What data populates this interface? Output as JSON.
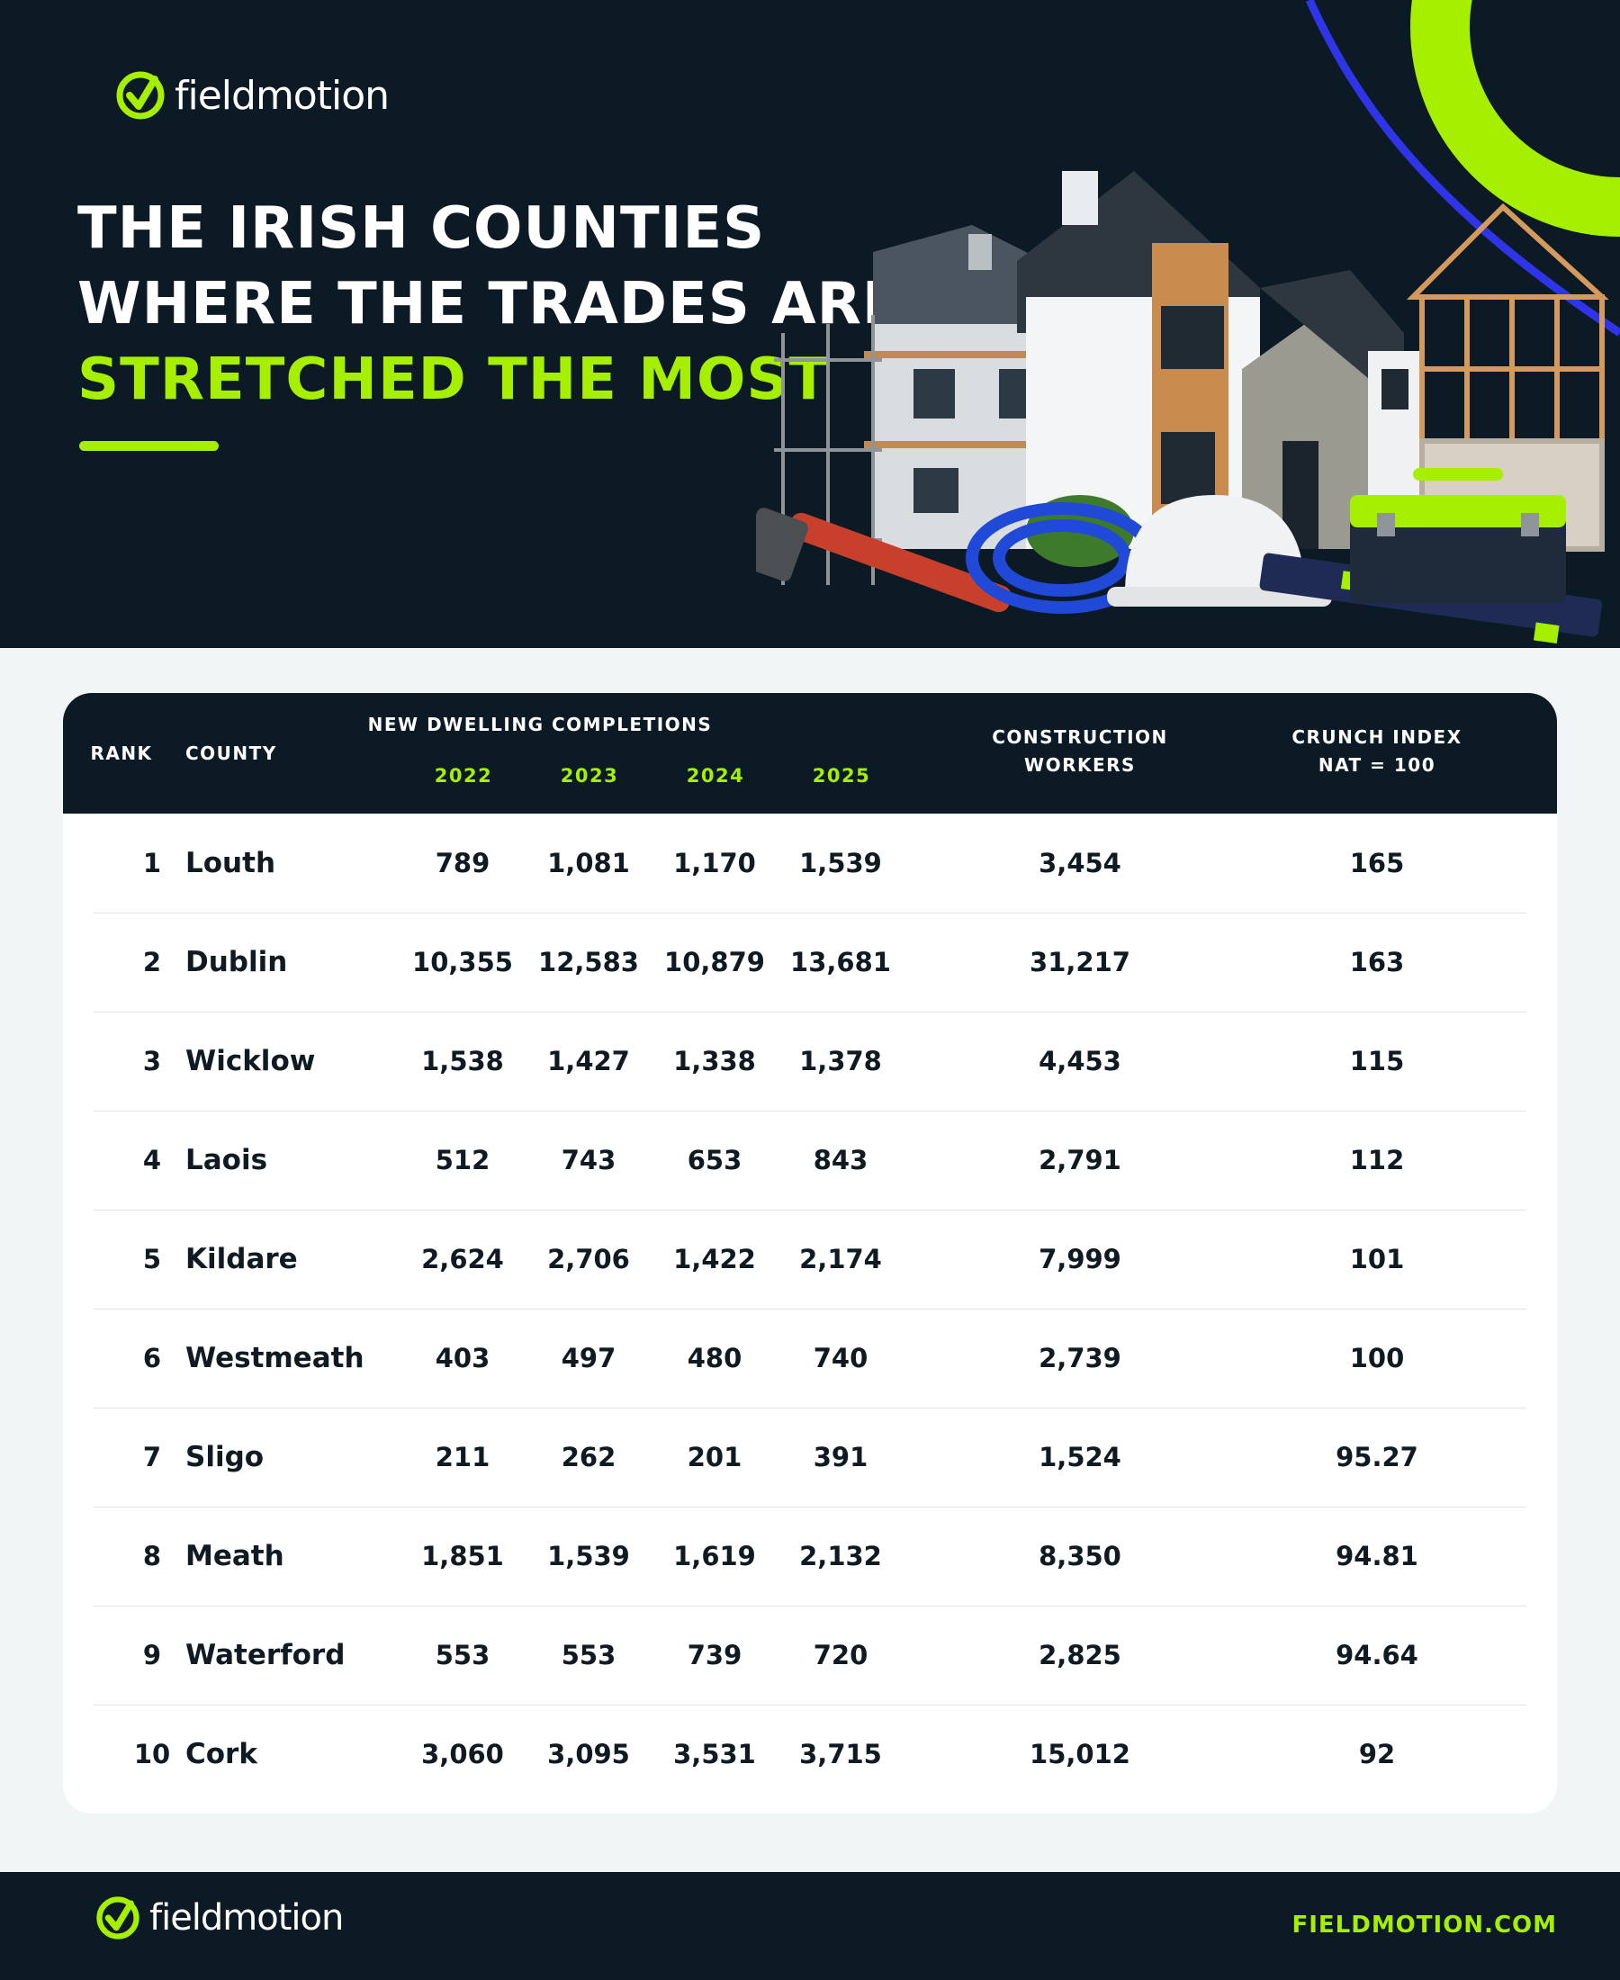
{
  "brand": {
    "name": "fieldmotion",
    "url": "FIELDMOTION.COM"
  },
  "hero": {
    "title_line1": "THE IRISH COUNTIES",
    "title_line2": "WHERE THE TRADES ARE",
    "title_highlight": "STRETCHED THE MOST"
  },
  "colors": {
    "accent": "#a6ef00",
    "dark": "#0b1a25",
    "blue": "#2f35e6"
  },
  "table": {
    "headers": {
      "rank": "RANK",
      "county": "COUNTY",
      "completions_group": "NEW DWELLING COMPLETIONS",
      "years": [
        "2022",
        "2023",
        "2024",
        "2025"
      ],
      "workers_line1": "CONSTRUCTION",
      "workers_line2": "WORKERS",
      "index_line1": "CRUNCH INDEX",
      "index_line2": "NAT = 100"
    },
    "rows": [
      {
        "rank": "1",
        "county": "Louth",
        "y2022": "789",
        "y2023": "1,081",
        "y2024": "1,170",
        "y2025": "1,539",
        "workers": "3,454",
        "index": "165"
      },
      {
        "rank": "2",
        "county": "Dublin",
        "y2022": "10,355",
        "y2023": "12,583",
        "y2024": "10,879",
        "y2025": "13,681",
        "workers": "31,217",
        "index": "163"
      },
      {
        "rank": "3",
        "county": "Wicklow",
        "y2022": "1,538",
        "y2023": "1,427",
        "y2024": "1,338",
        "y2025": "1,378",
        "workers": "4,453",
        "index": "115"
      },
      {
        "rank": "4",
        "county": "Laois",
        "y2022": "512",
        "y2023": "743",
        "y2024": "653",
        "y2025": "843",
        "workers": "2,791",
        "index": "112"
      },
      {
        "rank": "5",
        "county": "Kildare",
        "y2022": "2,624",
        "y2023": "2,706",
        "y2024": "1,422",
        "y2025": "2,174",
        "workers": "7,999",
        "index": "101"
      },
      {
        "rank": "6",
        "county": "Westmeath",
        "y2022": "403",
        "y2023": "497",
        "y2024": "480",
        "y2025": "740",
        "workers": "2,739",
        "index": "100"
      },
      {
        "rank": "7",
        "county": "Sligo",
        "y2022": "211",
        "y2023": "262",
        "y2024": "201",
        "y2025": "391",
        "workers": "1,524",
        "index": "95.27"
      },
      {
        "rank": "8",
        "county": "Meath",
        "y2022": "1,851",
        "y2023": "1,539",
        "y2024": "1,619",
        "y2025": "2,132",
        "workers": "8,350",
        "index": "94.81"
      },
      {
        "rank": "9",
        "county": "Waterford",
        "y2022": "553",
        "y2023": "553",
        "y2024": "739",
        "y2025": "720",
        "workers": "2,825",
        "index": "94.64"
      },
      {
        "rank": "10",
        "county": "Cork",
        "y2022": "3,060",
        "y2023": "3,095",
        "y2024": "3,531",
        "y2025": "3,715",
        "workers": "15,012",
        "index": "92"
      }
    ]
  }
}
